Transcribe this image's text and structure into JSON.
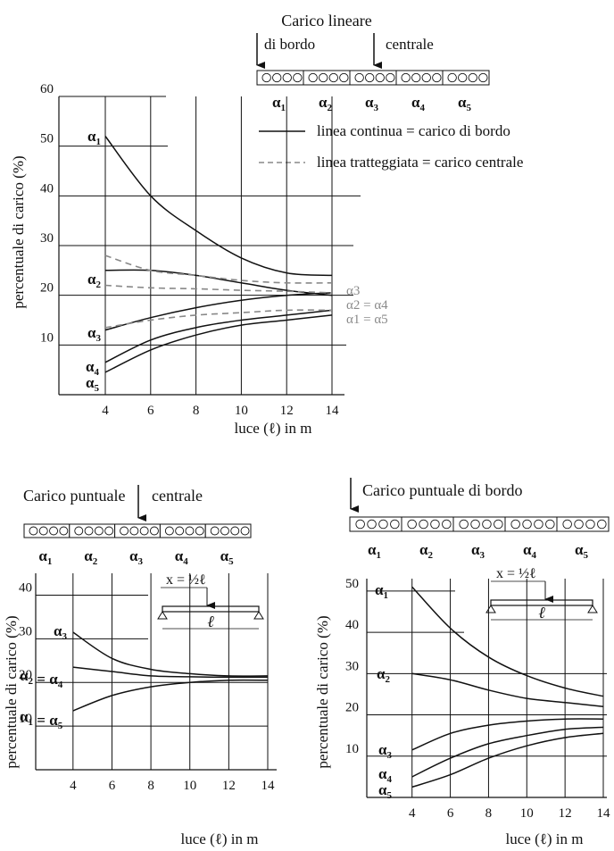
{
  "chart_data": [
    {
      "type": "line",
      "title": "Carico lineare",
      "load_labels": [
        "di bordo",
        "centrale"
      ],
      "legend": {
        "solid_label": "linea continua = carico di bordo",
        "dashed_label": "linea tratteggiata = carico centrale"
      },
      "xlabel": "luce (ℓ) in m",
      "ylabel": "percentuale di carico (%)",
      "xlim": [
        4,
        14
      ],
      "ylim": [
        0,
        60
      ],
      "x_ticks": [
        4,
        6,
        8,
        10,
        12,
        14
      ],
      "y_ticks": [
        10,
        20,
        30,
        40,
        50,
        60
      ],
      "strip_labels": [
        "α1",
        "α2",
        "α3",
        "α4",
        "α5"
      ],
      "series": [
        {
          "label": "α1",
          "style": "solid",
          "x": [
            4,
            6,
            8,
            10,
            12,
            14
          ],
          "values": [
            52,
            40,
            33,
            27.5,
            24.5,
            24
          ]
        },
        {
          "label": "α2",
          "style": "solid",
          "x": [
            4,
            6,
            8,
            10,
            12,
            14
          ],
          "values": [
            25,
            25,
            24,
            22.5,
            21,
            20
          ]
        },
        {
          "label": "α3",
          "style": "solid",
          "x": [
            4,
            6,
            8,
            10,
            12,
            14
          ],
          "values": [
            13,
            15.5,
            17.5,
            19,
            20,
            20.5
          ]
        },
        {
          "label": "α4",
          "style": "solid",
          "x": [
            4,
            6,
            8,
            10,
            12,
            14
          ],
          "values": [
            6.5,
            11,
            13.5,
            15,
            16,
            17
          ]
        },
        {
          "label": "α5",
          "style": "solid",
          "x": [
            4,
            6,
            8,
            10,
            12,
            14
          ],
          "values": [
            4.5,
            9,
            12,
            14,
            15,
            16
          ]
        },
        {
          "style": "dashed",
          "x": [
            4,
            6,
            8,
            10,
            12,
            14
          ],
          "values": [
            28,
            25,
            24,
            23,
            22.5,
            22.5
          ]
        },
        {
          "style": "dashed",
          "x": [
            4,
            6,
            8,
            10,
            12,
            14
          ],
          "values": [
            22,
            21.5,
            21.3,
            21,
            20.8,
            20.5
          ]
        },
        {
          "style": "dashed",
          "x": [
            4,
            6,
            8,
            10,
            12,
            14
          ],
          "values": [
            13.5,
            15,
            16,
            16.5,
            17,
            17
          ]
        }
      ],
      "right_labels": [
        "α3",
        "α2 = α4",
        "α1 = α5"
      ]
    },
    {
      "type": "line",
      "title": "Carico puntuale",
      "load_label": "centrale",
      "xlabel": "luce (ℓ) in m",
      "ylabel": "percentuale di carico (%)",
      "xlim": [
        3,
        14
      ],
      "ylim": [
        0,
        45
      ],
      "x_ticks": [
        4,
        6,
        8,
        10,
        12,
        14
      ],
      "y_ticks": [
        10,
        20,
        30,
        40
      ],
      "strip_labels": [
        "α1",
        "α2",
        "α3",
        "α4",
        "α5"
      ],
      "beam_labels": {
        "position": "x = ½ℓ",
        "span": "ℓ"
      },
      "series": [
        {
          "label": "α3",
          "style": "solid",
          "x": [
            4,
            6,
            8,
            10,
            12,
            14
          ],
          "values": [
            31.5,
            25.5,
            23,
            22,
            21.5,
            21.5
          ]
        },
        {
          "label": "α2 = α4",
          "style": "solid",
          "x": [
            4,
            6,
            8,
            10,
            12,
            14
          ],
          "values": [
            23.5,
            22.5,
            21.5,
            21.3,
            21.2,
            21.2
          ]
        },
        {
          "label": "α1 = α5",
          "style": "solid",
          "x": [
            4,
            6,
            8,
            10,
            12,
            14
          ],
          "values": [
            13.5,
            17,
            19,
            20,
            20.5,
            20.5
          ]
        }
      ]
    },
    {
      "type": "line",
      "title": "Carico puntuale di bordo",
      "xlabel": "luce (ℓ) in m",
      "ylabel": "percentuale di carico (%)",
      "xlim": [
        3.5,
        14
      ],
      "ylim": [
        0,
        53
      ],
      "x_ticks": [
        4,
        6,
        8,
        10,
        12,
        14
      ],
      "y_ticks": [
        10,
        20,
        30,
        40,
        50
      ],
      "strip_labels": [
        "α1",
        "α2",
        "α3",
        "α4",
        "α5"
      ],
      "beam_labels": {
        "position": "x = ½ℓ",
        "span": "ℓ"
      },
      "series": [
        {
          "label": "α1",
          "style": "solid",
          "x": [
            4,
            6,
            8,
            10,
            12,
            14
          ],
          "values": [
            51,
            41,
            34,
            29.5,
            26.5,
            24.5
          ]
        },
        {
          "label": "α2",
          "style": "solid",
          "x": [
            4,
            6,
            8,
            10,
            12,
            14
          ],
          "values": [
            30,
            28.5,
            26,
            24,
            23,
            22
          ]
        },
        {
          "label": "α3",
          "style": "solid",
          "x": [
            4,
            6,
            8,
            10,
            12,
            14
          ],
          "values": [
            11.5,
            15.5,
            17.5,
            18.5,
            19,
            19
          ]
        },
        {
          "label": "α4",
          "style": "solid",
          "x": [
            4,
            6,
            8,
            10,
            12,
            14
          ],
          "values": [
            5,
            9.5,
            13,
            15,
            16.5,
            17
          ]
        },
        {
          "label": "α5",
          "style": "solid",
          "x": [
            4,
            6,
            8,
            10,
            12,
            14
          ],
          "values": [
            2.5,
            5.5,
            9.5,
            12.5,
            14.5,
            15.5
          ]
        }
      ]
    }
  ]
}
